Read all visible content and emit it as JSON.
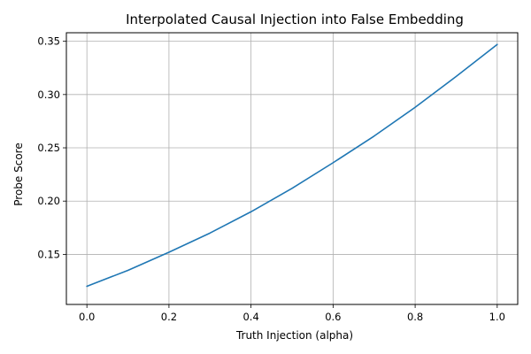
{
  "chart_data": {
    "type": "line",
    "title": "Interpolated Causal Injection into False Embedding",
    "xlabel": "Truth Injection (alpha)",
    "ylabel": "Probe Score",
    "xlim": [
      -0.05,
      1.05
    ],
    "ylim": [
      0.103,
      0.358
    ],
    "grid": true,
    "x_ticks": [
      0.0,
      0.2,
      0.4,
      0.6,
      0.8,
      1.0
    ],
    "x_tick_labels": [
      "0.0",
      "0.2",
      "0.4",
      "0.6",
      "0.8",
      "1.0"
    ],
    "y_ticks": [
      0.15,
      0.2,
      0.25,
      0.3,
      0.35
    ],
    "y_tick_labels": [
      "0.15",
      "0.20",
      "0.25",
      "0.30",
      "0.35"
    ],
    "series": [
      {
        "color": "#1f77b4",
        "x": [
          0.0,
          0.1,
          0.2,
          0.3,
          0.4,
          0.5,
          0.6,
          0.7,
          0.8,
          0.9,
          1.0
        ],
        "y": [
          0.12,
          0.135,
          0.152,
          0.17,
          0.19,
          0.212,
          0.236,
          0.261,
          0.288,
          0.317,
          0.347
        ]
      }
    ]
  }
}
